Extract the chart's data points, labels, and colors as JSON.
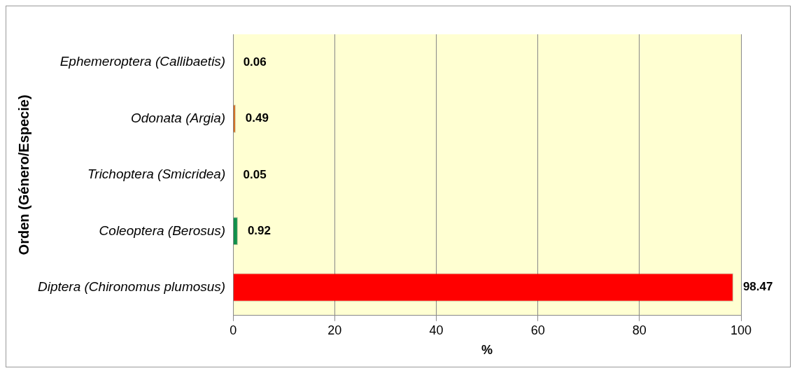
{
  "chart_data": {
    "type": "bar",
    "orientation": "horizontal",
    "categories": [
      "Ephemeroptera (Callibaetis)",
      "Odonata (Argia)",
      "Trichoptera (Smicridea)",
      "Coleoptera (Berosus)",
      "Diptera (Chironomus plumosus)"
    ],
    "values": [
      0.06,
      0.49,
      0.05,
      0.92,
      98.47
    ],
    "colors": [
      "#3a6090",
      "#d06010",
      "#900090",
      "#10904a",
      "#ff0000"
    ],
    "xlabel": "%",
    "ylabel": "Orden (Género/Especie)",
    "xlim": [
      0,
      100
    ],
    "xticks": [
      0,
      20,
      40,
      60,
      80,
      100
    ],
    "grid": "x",
    "data_labels": true,
    "legend": false
  }
}
